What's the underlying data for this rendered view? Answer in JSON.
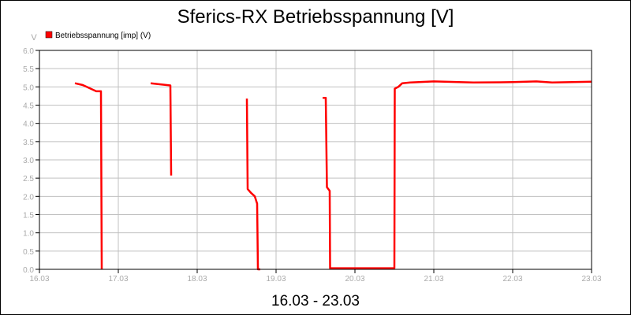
{
  "chart_data": {
    "type": "line",
    "title": "Sferics-RX Betriebsspannung [V]",
    "xlabel": "16.03 - 23.03",
    "ylabel": "V",
    "ylim": [
      0,
      6
    ],
    "yticks": [
      "0.0",
      "0.5",
      "1.0",
      "1.5",
      "2.0",
      "2.5",
      "3.0",
      "3.5",
      "4.0",
      "4.5",
      "5.0",
      "5.5",
      "6.0"
    ],
    "xticks": [
      "16.03",
      "17.03",
      "18.03",
      "19.03",
      "20.03",
      "21.03",
      "22.03",
      "23.03"
    ],
    "grid": true,
    "legend_placement": "top-left",
    "series": [
      {
        "name": "Betriebsspannung [imp] (V)",
        "color": "#ff0000",
        "points": [
          [
            "16.03 10:48",
            5.1
          ],
          [
            "16.03 13:12",
            5.05
          ],
          [
            "16.03 15:36",
            4.95
          ],
          [
            "16.03 17:17",
            4.88
          ],
          [
            "16.03 18:43",
            4.88
          ],
          [
            "16.03 18:58",
            0.0
          ],
          null,
          [
            "17.03 09:50",
            5.1
          ],
          [
            "17.03 15:50",
            5.04
          ],
          [
            "17.03 16:05",
            2.57
          ],
          null,
          [
            "18.03 15:07",
            4.68
          ],
          [
            "18.03 15:22",
            2.2
          ],
          [
            "18.03 16:19",
            2.1
          ],
          [
            "18.03 17:31",
            2.0
          ],
          [
            "18.03 18:14",
            1.8
          ],
          [
            "18.03 18:29",
            0.0
          ],
          [
            "18.03 19:12",
            0.0
          ],
          null,
          [
            "19.03 14:10",
            4.7
          ],
          [
            "19.03 15:07",
            4.7
          ],
          [
            "19.03 15:29",
            2.25
          ],
          [
            "19.03 16:19",
            2.15
          ],
          [
            "19.03 16:26",
            0.03
          ],
          [
            "20.03 12:00",
            0.03
          ],
          [
            "20.03 12:07",
            4.95
          ],
          [
            "20.03 13:12",
            5.0
          ],
          [
            "20.03 14:24",
            5.1
          ],
          [
            "20.03 16:48",
            5.12
          ],
          [
            "21.03 00:00",
            5.15
          ],
          [
            "21.03 12:00",
            5.12
          ],
          [
            "22.03 00:00",
            5.13
          ],
          [
            "22.03 07:12",
            5.15
          ],
          [
            "22.03 12:00",
            5.12
          ],
          [
            "23.03 00:00",
            5.14
          ]
        ]
      }
    ]
  }
}
